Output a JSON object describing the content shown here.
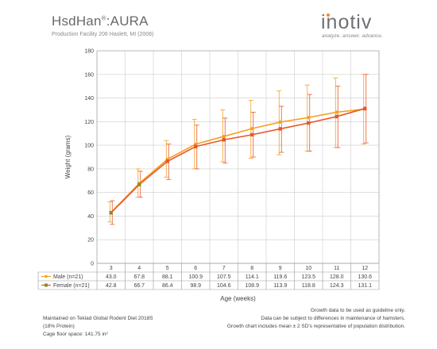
{
  "header": {
    "title_main": "HsdHan",
    "title_reg": "®",
    "title_tail": ":AURA",
    "subtitle": "Production Facility 206 Haslett, MI (2008)"
  },
  "logo": {
    "word": "inotiv",
    "tagline": "analyze. answer. advance."
  },
  "colors": {
    "male": "#f5a020",
    "female": "#e9562a",
    "female_marker": "#8a8a2a",
    "grid": "#cccccc"
  },
  "chart_data": {
    "type": "line",
    "categories": [
      "3",
      "4",
      "5",
      "6",
      "7",
      "8",
      "9",
      "10",
      "11",
      "12"
    ],
    "xlabel": "Age (weeks)",
    "ylabel": "Weight (grams)",
    "ylim": [
      0,
      180
    ],
    "yticks": [
      0,
      20,
      40,
      60,
      80,
      100,
      120,
      140,
      160,
      180
    ],
    "grid": true,
    "series": [
      {
        "name": "Male (n=21)",
        "values": [
          43.0,
          67.8,
          88.1,
          100.9,
          107.5,
          114.1,
          119.6,
          123.5,
          128.0,
          130.6
        ],
        "labels": [
          "43.0",
          "67.8",
          "88.1",
          "100.9",
          "107.5",
          "114.1",
          "119.6",
          "123.5",
          "128.0",
          "130.6"
        ],
        "error_low": [
          35,
          56,
          73,
          80,
          86,
          89,
          92,
          95,
          98,
          101
        ],
        "error_high": [
          52,
          80,
          104,
          122,
          130,
          138,
          146,
          151,
          157,
          160
        ]
      },
      {
        "name": "Female (n=21)",
        "values": [
          42.8,
          66.7,
          86.4,
          98.9,
          104.6,
          108.9,
          113.9,
          118.8,
          124.3,
          131.1
        ],
        "labels": [
          "42.8",
          "66.7",
          "86.4",
          "98.9",
          "104.6",
          "108.9",
          "113.9",
          "118.8",
          "124.3",
          "131.1"
        ],
        "error_low": [
          33,
          56,
          71,
          80,
          85,
          90,
          94,
          95,
          98,
          102
        ],
        "error_high": [
          53,
          78,
          101,
          117,
          123,
          128,
          133,
          143,
          150,
          160
        ]
      }
    ]
  },
  "footer": {
    "left": [
      "Maintained on Teklad Global Rodent Diet 2018S",
      "(18% Protein)",
      "Cage floor space: 141.75 in²"
    ],
    "right": [
      "Growth data to be used as guideline only.",
      "Data can be subject to differences in maintenance of hamsters.",
      "Growth chart includes mean ± 2 SD's representative of population distribution."
    ]
  }
}
